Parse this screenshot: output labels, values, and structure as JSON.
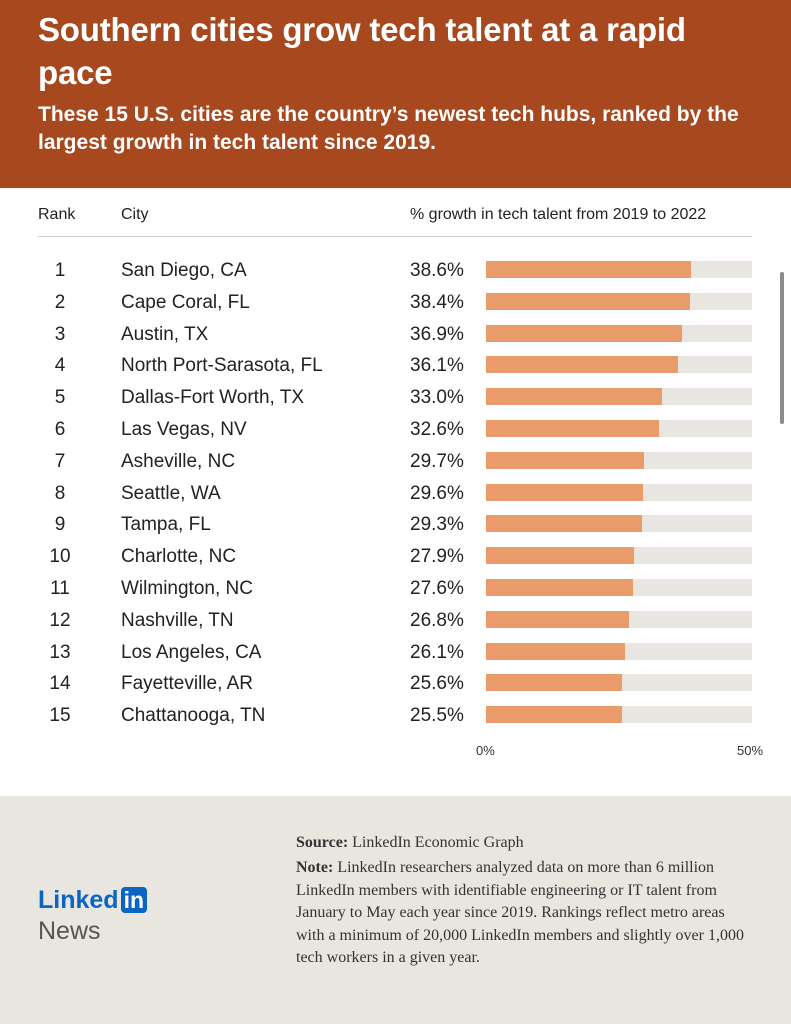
{
  "header": {
    "title": "Southern cities grow tech talent at a rapid pace",
    "subtitle": "These 15 U.S. cities are the country’s newest tech hubs, ranked by the largest growth in tech talent since 2019."
  },
  "columns": {
    "rank": "Rank",
    "city": "City",
    "growth": "% growth in tech talent from 2019 to 2022"
  },
  "chart_data": {
    "type": "bar",
    "orientation": "horizontal",
    "title": "Southern cities grow tech talent at a rapid pace",
    "xlim": [
      0,
      50
    ],
    "x_ticks": [
      "0%",
      "50%"
    ],
    "rows": [
      {
        "rank": "1",
        "city": "San Diego, CA",
        "value": 38.6,
        "label": "38.6%"
      },
      {
        "rank": "2",
        "city": "Cape Coral, FL",
        "value": 38.4,
        "label": "38.4%"
      },
      {
        "rank": "3",
        "city": "Austin, TX",
        "value": 36.9,
        "label": "36.9%"
      },
      {
        "rank": "4",
        "city": "North Port-Sarasota, FL",
        "value": 36.1,
        "label": "36.1%"
      },
      {
        "rank": "5",
        "city": "Dallas-Fort Worth, TX",
        "value": 33.0,
        "label": "33.0%"
      },
      {
        "rank": "6",
        "city": "Las Vegas, NV",
        "value": 32.6,
        "label": "32.6%"
      },
      {
        "rank": "7",
        "city": "Asheville, NC",
        "value": 29.7,
        "label": "29.7%"
      },
      {
        "rank": "8",
        "city": "Seattle, WA",
        "value": 29.6,
        "label": "29.6%"
      },
      {
        "rank": "9",
        "city": "Tampa, FL",
        "value": 29.3,
        "label": "29.3%"
      },
      {
        "rank": "10",
        "city": "Charlotte, NC",
        "value": 27.9,
        "label": "27.9%"
      },
      {
        "rank": "11",
        "city": "Wilmington, NC",
        "value": 27.6,
        "label": "27.6%"
      },
      {
        "rank": "12",
        "city": "Nashville, TN",
        "value": 26.8,
        "label": "26.8%"
      },
      {
        "rank": "13",
        "city": "Los Angeles, CA",
        "value": 26.1,
        "label": "26.1%"
      },
      {
        "rank": "14",
        "city": "Fayetteville, AR",
        "value": 25.6,
        "label": "25.6%"
      },
      {
        "rank": "15",
        "city": "Chattanooga, TN",
        "value": 25.5,
        "label": "25.5%"
      }
    ],
    "colors": {
      "bar": "#e99c6a",
      "track": "#e9e5e1",
      "header": "#a8481e"
    }
  },
  "footer": {
    "source_label": "Source:",
    "source_text": "LinkedIn Economic Graph",
    "note_label": "Note:",
    "note_text": "LinkedIn researchers analyzed data on more than 6 million LinkedIn members with identifiable engineering or IT talent from January to May each year since 2019. Rankings reflect metro areas with a minimum of 20,000 LinkedIn members and slightly over 1,000 tech workers in a given year.",
    "logo_linked": "Linked",
    "logo_in": "in",
    "logo_news": "News"
  }
}
